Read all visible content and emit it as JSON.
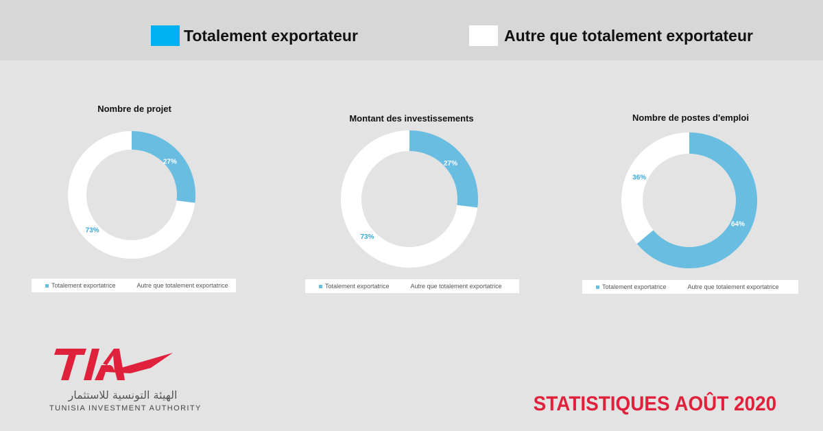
{
  "legend": {
    "items": [
      {
        "label": "Totalement exportateur",
        "color": "#00b0f0"
      },
      {
        "label": "Autre que totalement exportateur",
        "color": "#ffffff"
      }
    ]
  },
  "chart_data": [
    {
      "type": "pie",
      "title": "Nombre de projet",
      "slices": [
        {
          "label": "Totalement exportatrice",
          "value": 27,
          "text": "27%",
          "color": "#68bde0"
        },
        {
          "label": "Autre que totalement exportatrice",
          "value": 73,
          "text": "73%",
          "color": "#ffffff"
        }
      ],
      "legend_placement": "bottom"
    },
    {
      "type": "pie",
      "title": "Montant des investissements",
      "slices": [
        {
          "label": "Totalement exportatrice",
          "value": 27,
          "text": "27%",
          "color": "#68bde0"
        },
        {
          "label": "Autre que totalement exportatrice",
          "value": 73,
          "text": "73%",
          "color": "#ffffff"
        }
      ],
      "legend_placement": "bottom"
    },
    {
      "type": "pie",
      "title": "Nombre de postes d'emploi",
      "slices": [
        {
          "label": "Totalement exportatrice",
          "value": 64,
          "text": "64%",
          "color": "#68bde0"
        },
        {
          "label": "Autre que totalement exportatrice",
          "value": 36,
          "text": "36%",
          "color": "#ffffff"
        }
      ],
      "legend_placement": "bottom"
    }
  ],
  "footer": {
    "logo_mark": "TIA",
    "logo_arabic": "الهيئة التونسية للاستثمار",
    "logo_english": "TUNISIA INVESTMENT AUTHORITY",
    "title": "STATISTIQUES AOÛT 2020",
    "brand_color": "#e0213c"
  }
}
